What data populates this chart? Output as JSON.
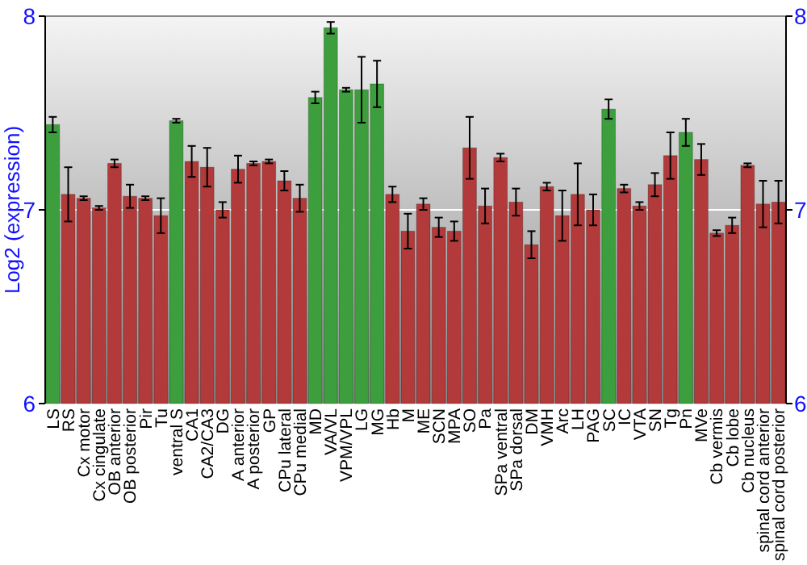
{
  "chart_data": {
    "type": "bar",
    "ylabel": "Log2 (expression)",
    "categories": [
      "LS",
      "RS",
      "Cx motor",
      "Cx cingulate",
      "OB anterior",
      "OB posterior",
      "Pir",
      "Tu",
      "ventral S",
      "CA1",
      "CA2/CA3",
      "DG",
      "A anterior",
      "A posterior",
      "GP",
      "CPu lateral",
      "CPu medial",
      "MD",
      "VA/VL",
      "VPM/VPL",
      "LG",
      "MG",
      "Hb",
      "M",
      "ME",
      "SCN",
      "MPA",
      "SO",
      "Pa",
      "SPa ventral",
      "SPa dorsal",
      "DM",
      "VMH",
      "Arc",
      "LH",
      "PAG",
      "SC",
      "IC",
      "VTA",
      "SN",
      "Tg",
      "Pn",
      "MVe",
      "Cb vermis",
      "Cb lobe",
      "Cb nucleus",
      "spinal cord anterior",
      "spinal cord posterior"
    ],
    "values": [
      7.44,
      7.08,
      7.06,
      7.01,
      7.24,
      7.07,
      7.06,
      6.97,
      7.46,
      7.25,
      7.22,
      7.0,
      7.21,
      7.24,
      7.25,
      7.15,
      7.06,
      7.58,
      7.94,
      7.62,
      7.62,
      7.65,
      7.08,
      6.89,
      7.03,
      6.91,
      6.89,
      7.32,
      7.02,
      7.27,
      7.04,
      6.82,
      7.12,
      6.97,
      7.08,
      7.0,
      7.52,
      7.11,
      7.02,
      7.13,
      7.28,
      7.4,
      7.26,
      6.88,
      6.92,
      7.23,
      7.03,
      7.04
    ],
    "errors": [
      0.04,
      0.14,
      0.01,
      0.01,
      0.02,
      0.06,
      0.01,
      0.09,
      0.01,
      0.08,
      0.1,
      0.04,
      0.07,
      0.01,
      0.01,
      0.05,
      0.07,
      0.03,
      0.03,
      0.01,
      0.17,
      0.12,
      0.04,
      0.09,
      0.03,
      0.05,
      0.05,
      0.16,
      0.09,
      0.02,
      0.07,
      0.07,
      0.02,
      0.13,
      0.16,
      0.08,
      0.05,
      0.02,
      0.02,
      0.06,
      0.12,
      0.07,
      0.08,
      0.015,
      0.04,
      0.01,
      0.12,
      0.11
    ],
    "colors": [
      "#3c9e3c",
      "#b23a3a",
      "#b23a3a",
      "#b23a3a",
      "#b23a3a",
      "#b23a3a",
      "#b23a3a",
      "#b23a3a",
      "#3c9e3c",
      "#b23a3a",
      "#b23a3a",
      "#b23a3a",
      "#b23a3a",
      "#b23a3a",
      "#b23a3a",
      "#b23a3a",
      "#b23a3a",
      "#3c9e3c",
      "#3c9e3c",
      "#3c9e3c",
      "#3c9e3c",
      "#3c9e3c",
      "#b23a3a",
      "#b23a3a",
      "#b23a3a",
      "#b23a3a",
      "#b23a3a",
      "#b23a3a",
      "#b23a3a",
      "#b23a3a",
      "#b23a3a",
      "#b23a3a",
      "#b23a3a",
      "#b23a3a",
      "#b23a3a",
      "#b23a3a",
      "#3c9e3c",
      "#b23a3a",
      "#b23a3a",
      "#b23a3a",
      "#b23a3a",
      "#3c9e3c",
      "#b23a3a",
      "#b23a3a",
      "#b23a3a",
      "#b23a3a",
      "#b23a3a",
      "#b23a3a"
    ],
    "ylim": [
      6,
      8
    ],
    "yticks": [
      6,
      7,
      8
    ],
    "y2lim": [
      6,
      8
    ],
    "y2ticks": [
      6,
      7,
      8
    ],
    "ref_lines": [
      {
        "axis": "y",
        "value": 7,
        "color": "#ffffff"
      }
    ]
  }
}
